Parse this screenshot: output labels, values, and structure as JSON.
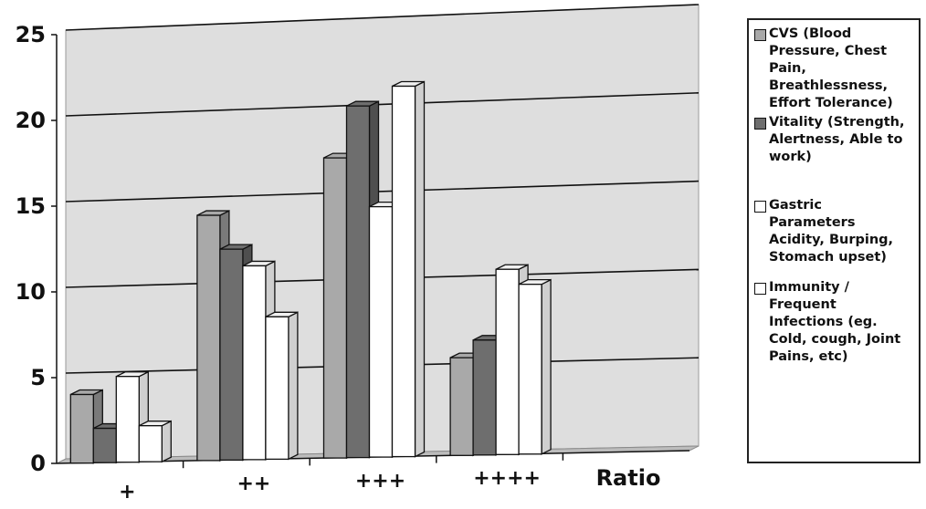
{
  "chart_data": {
    "type": "bar",
    "categories": [
      "+",
      "++",
      "+++",
      "++++"
    ],
    "series": [
      {
        "name": "CVS (Blood\nPressure, Chest\nPain,\nBreathlessness,\nEffort Tolerance)",
        "values": [
          4,
          14.3,
          17.5,
          5.7
        ],
        "color": "#a9a9a9"
      },
      {
        "name": "Vitality (Strength,\nAlertness, Able to\nwork)",
        "values": [
          2,
          12.3,
          20.5,
          6.7
        ],
        "color": "#6e6e6e"
      },
      {
        "name": "Gastric\nParameters\nAcidity, Burping,\nStomach upset)",
        "values": [
          5,
          11.3,
          14.6,
          10.8
        ],
        "color": "#ffffff"
      },
      {
        "name": "Immunity /\nFrequent\nInfections (eg.\nCold, cough, Joint\nPains, etc)",
        "values": [
          2.1,
          8.3,
          21.6,
          9.9
        ],
        "color": "#ffffff"
      }
    ],
    "xlabel": "Ratio",
    "ylabel": "",
    "ylim": [
      0,
      25
    ],
    "yticks": [
      0,
      5,
      10,
      15,
      20,
      25
    ],
    "grid": true,
    "legend": "right",
    "style": "3d"
  }
}
